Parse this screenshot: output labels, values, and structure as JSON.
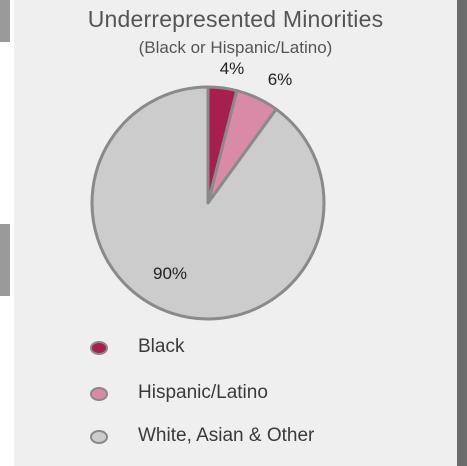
{
  "chart_data": {
    "type": "pie",
    "title": "Underrepresented Minorities",
    "subtitle": "(Black or Hispanic/Latino)",
    "slices": [
      {
        "label": "Black",
        "value": 4,
        "display": "4%",
        "color": "#a81e4e"
      },
      {
        "label": "Hispanic/Latino",
        "value": 6,
        "display": "6%",
        "color": "#d98aa7"
      },
      {
        "label": "White, Asian & Other",
        "value": 90,
        "display": "90%",
        "color": "#cccccc"
      }
    ],
    "legend": {
      "placement": "bottom",
      "items": [
        "Black",
        "Hispanic/Latino",
        "White, Asian & Other"
      ]
    }
  }
}
